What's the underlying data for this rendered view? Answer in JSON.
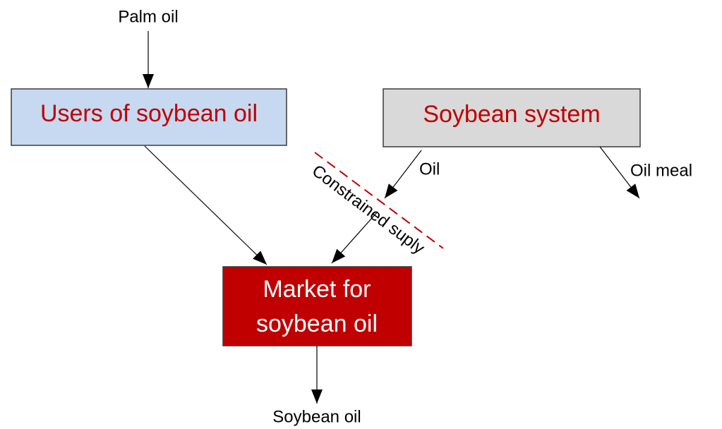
{
  "inputs": {
    "palm_oil": "Palm oil"
  },
  "nodes": [
    {
      "label": "Users of soybean oil"
    },
    {
      "label": "Soybean system"
    },
    {
      "label_lines": [
        "Market for",
        "soybean oil"
      ]
    }
  ],
  "edges": {
    "oil": "Oil",
    "oil_meal": "Oil meal",
    "constraint": "Constrained suply",
    "output": "Soybean oil"
  }
}
